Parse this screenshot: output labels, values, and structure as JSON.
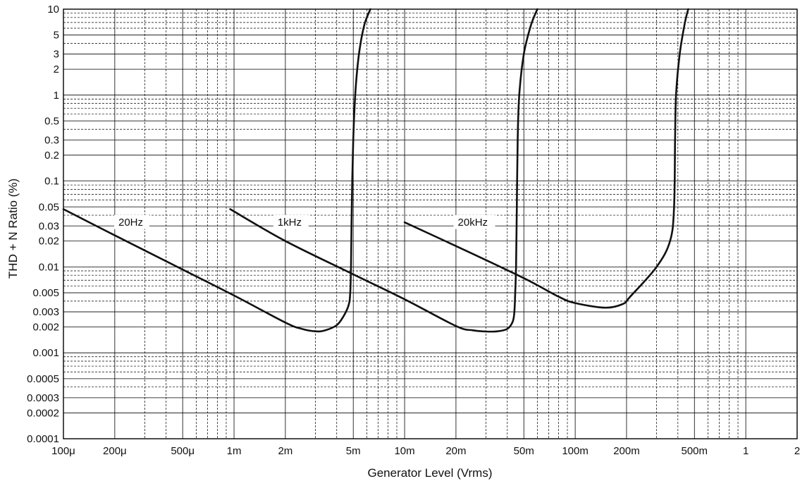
{
  "chart_data": {
    "type": "line",
    "title": "",
    "xlabel": "Generator Level (Vrms)",
    "ylabel": "THD + N Ratio (%)",
    "x_scale": "log",
    "y_scale": "log",
    "xlim": [
      0.0001,
      2
    ],
    "ylim": [
      0.0001,
      10
    ],
    "grid": true,
    "legend": "none",
    "x_ticks": [
      {
        "value": 0.0001,
        "label": "100μ"
      },
      {
        "value": 0.0002,
        "label": "200μ"
      },
      {
        "value": 0.0005,
        "label": "500μ"
      },
      {
        "value": 0.001,
        "label": "1m"
      },
      {
        "value": 0.002,
        "label": "2m"
      },
      {
        "value": 0.005,
        "label": "5m"
      },
      {
        "value": 0.01,
        "label": "10m"
      },
      {
        "value": 0.02,
        "label": "20m"
      },
      {
        "value": 0.05,
        "label": "50m"
      },
      {
        "value": 0.1,
        "label": "100m"
      },
      {
        "value": 0.2,
        "label": "200m"
      },
      {
        "value": 0.5,
        "label": "500m"
      },
      {
        "value": 1,
        "label": "1"
      },
      {
        "value": 2,
        "label": "2"
      }
    ],
    "y_ticks": [
      {
        "value": 10,
        "label": "10"
      },
      {
        "value": 5,
        "label": "5"
      },
      {
        "value": 3,
        "label": "3"
      },
      {
        "value": 2,
        "label": "2"
      },
      {
        "value": 1,
        "label": "1"
      },
      {
        "value": 0.5,
        "label": "0.5"
      },
      {
        "value": 0.3,
        "label": "0.3"
      },
      {
        "value": 0.2,
        "label": "0.2"
      },
      {
        "value": 0.1,
        "label": "0.1"
      },
      {
        "value": 0.05,
        "label": "0.05"
      },
      {
        "value": 0.03,
        "label": "0.03"
      },
      {
        "value": 0.02,
        "label": "0.02"
      },
      {
        "value": 0.01,
        "label": "0.01"
      },
      {
        "value": 0.005,
        "label": "0.005"
      },
      {
        "value": 0.003,
        "label": "0.003"
      },
      {
        "value": 0.002,
        "label": "0.002"
      },
      {
        "value": 0.001,
        "label": "0.001"
      },
      {
        "value": 0.0005,
        "label": "0.0005"
      },
      {
        "value": 0.0003,
        "label": "0.0003"
      },
      {
        "value": 0.0002,
        "label": "0.0002"
      },
      {
        "value": 0.0001,
        "label": "0.0001"
      }
    ],
    "series": [
      {
        "name": "20Hz",
        "label_at": {
          "x": 0.00021,
          "y": 0.0333
        },
        "points": [
          [
            0.0001,
            0.047
          ],
          [
            0.0002,
            0.0233
          ],
          [
            0.0005,
            0.0093
          ],
          [
            0.001,
            0.00465
          ],
          [
            0.002,
            0.00225
          ],
          [
            0.0025,
            0.0019
          ],
          [
            0.003,
            0.00178
          ],
          [
            0.0034,
            0.00182
          ],
          [
            0.004,
            0.0021
          ],
          [
            0.0044,
            0.0027
          ],
          [
            0.0047,
            0.0036
          ],
          [
            0.0048,
            0.005
          ],
          [
            0.00485,
            0.01
          ],
          [
            0.0049,
            0.05
          ],
          [
            0.005,
            0.3
          ],
          [
            0.00515,
            1.1
          ],
          [
            0.0054,
            3.0
          ],
          [
            0.0058,
            6.5
          ],
          [
            0.0063,
            10
          ]
        ]
      },
      {
        "name": "1kHz",
        "label_at": {
          "x": 0.0018,
          "y": 0.0333
        },
        "points": [
          [
            0.00095,
            0.047
          ],
          [
            0.002,
            0.02
          ],
          [
            0.005,
            0.0082
          ],
          [
            0.01,
            0.0042
          ],
          [
            0.02,
            0.00205
          ],
          [
            0.025,
            0.00183
          ],
          [
            0.03,
            0.00177
          ],
          [
            0.035,
            0.00178
          ],
          [
            0.04,
            0.0019
          ],
          [
            0.043,
            0.0023
          ],
          [
            0.044,
            0.003
          ],
          [
            0.0445,
            0.005
          ],
          [
            0.045,
            0.01
          ],
          [
            0.0455,
            0.05
          ],
          [
            0.046,
            0.3
          ],
          [
            0.047,
            1.0
          ],
          [
            0.05,
            3.0
          ],
          [
            0.055,
            6.5
          ],
          [
            0.06,
            10
          ]
        ]
      },
      {
        "name": "20kHz",
        "label_at": {
          "x": 0.0205,
          "y": 0.0333
        },
        "points": [
          [
            0.01,
            0.033
          ],
          [
            0.02,
            0.0175
          ],
          [
            0.05,
            0.0074
          ],
          [
            0.08,
            0.0045
          ],
          [
            0.1,
            0.0038
          ],
          [
            0.15,
            0.00335
          ],
          [
            0.19,
            0.0037
          ],
          [
            0.21,
            0.0045
          ],
          [
            0.3,
            0.01
          ],
          [
            0.36,
            0.02
          ],
          [
            0.38,
            0.05
          ],
          [
            0.385,
            0.3
          ],
          [
            0.39,
            1.0
          ],
          [
            0.41,
            3.0
          ],
          [
            0.44,
            7.0
          ],
          [
            0.46,
            10
          ]
        ]
      }
    ]
  }
}
